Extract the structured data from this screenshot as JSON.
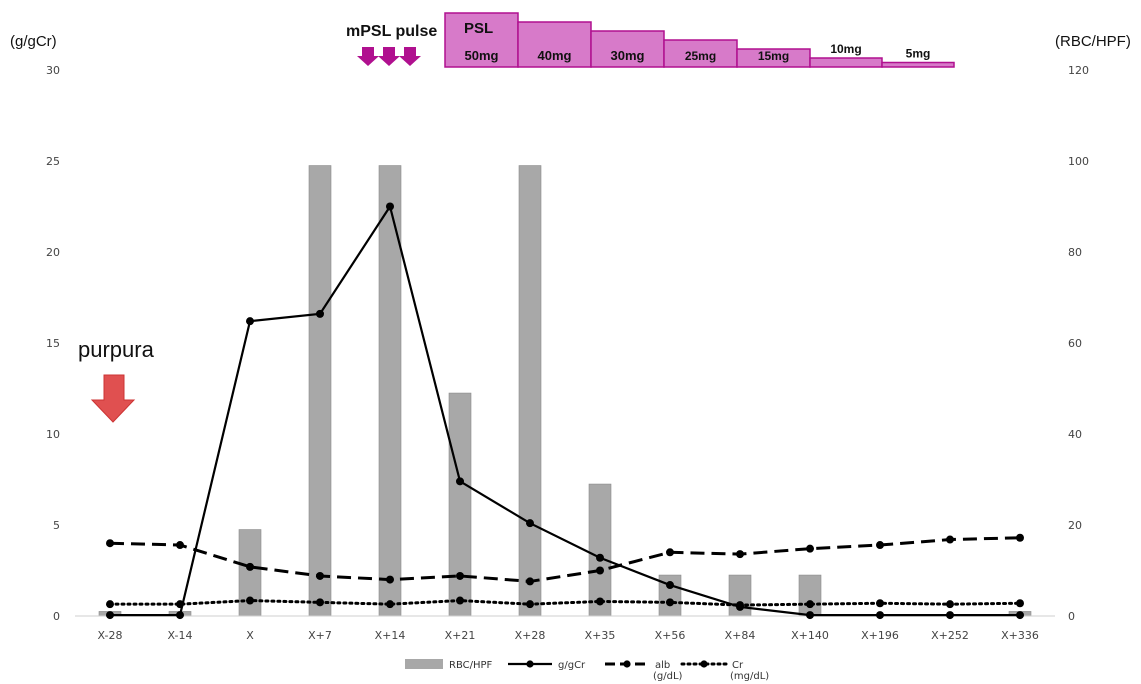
{
  "chart_data": {
    "type": "bar+line",
    "categories": [
      "X-28",
      "X-14",
      "X",
      "X+7",
      "X+14",
      "X+21",
      "X+28",
      "X+35",
      "X+56",
      "X+84",
      "X+140",
      "X+196",
      "X+252",
      "X+336"
    ],
    "y_left": {
      "label": "(g/gCr)",
      "range": [
        0,
        30
      ],
      "ticks": [
        "0",
        "5",
        "10",
        "15",
        "20",
        "25",
        "30"
      ]
    },
    "y_right": {
      "label": "(RBC/HPF)",
      "range": [
        0,
        120
      ],
      "ticks": [
        "0",
        "20",
        "40",
        "60",
        "80",
        "100",
        "120"
      ]
    },
    "bars": {
      "name": "RBC/HPF",
      "axis": "right",
      "color": "#a8a8a8",
      "values": [
        1,
        1,
        19,
        99,
        99,
        49,
        99,
        29,
        9,
        9,
        9,
        0,
        0,
        1
      ]
    },
    "lines": [
      {
        "name": "g/gCr",
        "style": "solid",
        "axis": "left",
        "values": [
          0.05,
          0.05,
          16.2,
          16.6,
          22.5,
          7.4,
          5.1,
          3.2,
          1.7,
          0.5,
          0.05,
          0.05,
          0.05,
          0.05
        ]
      },
      {
        "name": "alb",
        "unit": "(g/dL)",
        "style": "dashed",
        "axis": "left",
        "values": [
          4.0,
          3.9,
          2.7,
          2.2,
          2.0,
          2.2,
          1.9,
          2.5,
          3.5,
          3.4,
          3.7,
          3.9,
          4.2,
          4.3
        ]
      },
      {
        "name": "Cr",
        "unit": "(mg/dL)",
        "style": "dotted",
        "axis": "left",
        "values": [
          0.65,
          0.65,
          0.85,
          0.75,
          0.65,
          0.85,
          0.65,
          0.8,
          0.75,
          0.6,
          0.65,
          0.7,
          0.65,
          0.7
        ]
      }
    ],
    "legend_position": "bottom-center",
    "grid": false,
    "annotations": {
      "purpura": {
        "text": "purpura",
        "at_category": "X-28",
        "arrow_color": "#e05050"
      },
      "mpsl": {
        "text": "mPSL pulse",
        "arrows": 3,
        "arrow_color": "#b0108f"
      },
      "psl": {
        "label": "PSL",
        "steps": [
          {
            "label": "50mg",
            "level": 6
          },
          {
            "label": "40mg",
            "level": 5
          },
          {
            "label": "30mg",
            "level": 4
          },
          {
            "label": "25mg",
            "level": 3
          },
          {
            "label": "15mg",
            "level": 2
          },
          {
            "label": "10mg",
            "level": 1
          },
          {
            "label": "5mg",
            "level": 0.5
          }
        ],
        "fill": "#d77ac9",
        "stroke": "#b0108f"
      }
    }
  }
}
